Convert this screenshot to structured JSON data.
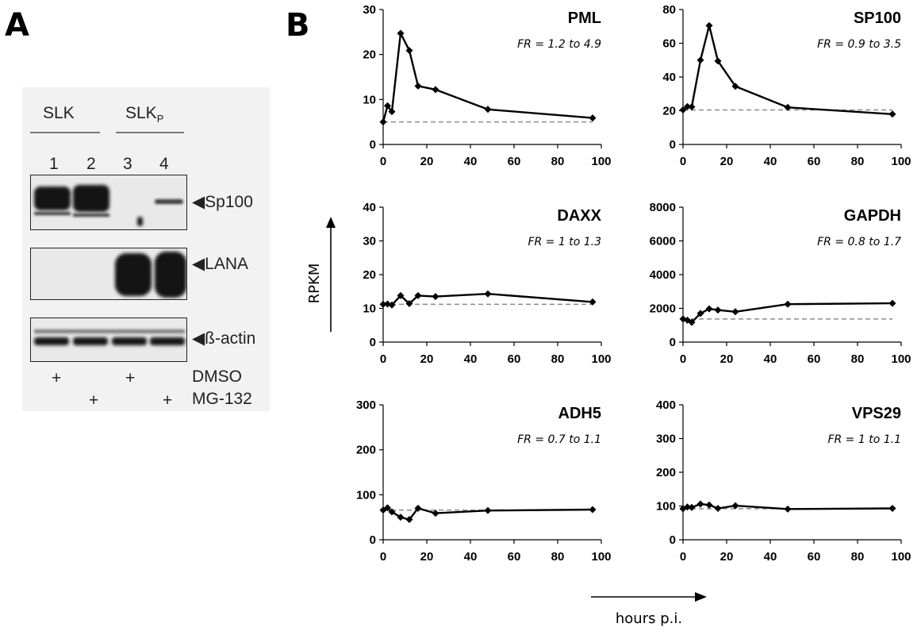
{
  "panel_a": {
    "letter": "A",
    "group_labels": [
      "SLK",
      "SLK",
      "P"
    ],
    "lane_numbers": [
      "1",
      "2",
      "3",
      "4"
    ],
    "band_labels": [
      "◀Sp100",
      "◀LANA",
      "◀ß-actin"
    ],
    "treatments": [
      {
        "label": "DMSO",
        "marks": [
          "+",
          "",
          "+",
          ""
        ]
      },
      {
        "label": "MG-132",
        "marks": [
          "",
          "+",
          "",
          "+"
        ]
      }
    ]
  },
  "panel_b": {
    "letter": "B",
    "ylabel": "RPKM",
    "xlabel": "hours p.i.",
    "line_color": "#000000",
    "baseline_color": "#8a8a8a"
  },
  "chart_data": [
    {
      "type": "line",
      "title": "PML",
      "annotation": "FR = 1.2 to 4.9",
      "x": [
        0,
        2,
        4,
        8,
        12,
        16,
        24,
        48,
        96
      ],
      "y": [
        5,
        8.6,
        7.3,
        24.7,
        20.9,
        13,
        12.2,
        7.8,
        5.9
      ],
      "baseline": 5,
      "ylim": [
        0,
        30
      ],
      "yticks": [
        0,
        10,
        20,
        30
      ],
      "xlim": [
        0,
        100
      ],
      "xticks": [
        0,
        20,
        40,
        60,
        80,
        100
      ]
    },
    {
      "type": "line",
      "title": "SP100",
      "annotation": "FR = 0.9 to 3.5",
      "x": [
        0,
        2,
        4,
        8,
        12,
        16,
        24,
        48,
        96
      ],
      "y": [
        20.5,
        22.5,
        22.3,
        50,
        70.5,
        49.5,
        34.5,
        22,
        18
      ],
      "baseline": 20.5,
      "ylim": [
        0,
        80
      ],
      "yticks": [
        0,
        20,
        40,
        60,
        80
      ],
      "xlim": [
        0,
        100
      ],
      "xticks": [
        0,
        20,
        40,
        60,
        80,
        100
      ]
    },
    {
      "type": "line",
      "title": "DAXX",
      "annotation": "FR = 1 to 1.3",
      "x": [
        0,
        2,
        4,
        8,
        12,
        16,
        24,
        48,
        96
      ],
      "y": [
        11.2,
        11.3,
        11,
        13.8,
        11.4,
        13.8,
        13.5,
        14.3,
        11.9
      ],
      "baseline": 11.2,
      "ylim": [
        0,
        40
      ],
      "yticks": [
        0,
        10,
        20,
        30,
        40
      ],
      "xlim": [
        0,
        100
      ],
      "xticks": [
        0,
        20,
        40,
        60,
        80,
        100
      ]
    },
    {
      "type": "line",
      "title": "GAPDH",
      "annotation": "FR = 0.8 to 1.7",
      "x": [
        0,
        2,
        4,
        8,
        12,
        16,
        24,
        48,
        96
      ],
      "y": [
        1370,
        1300,
        1170,
        1700,
        1970,
        1900,
        1800,
        2250,
        2300
      ],
      "baseline": 1370,
      "ylim": [
        0,
        8000
      ],
      "yticks": [
        0,
        2000,
        4000,
        6000,
        8000
      ],
      "xlim": [
        0,
        100
      ],
      "xticks": [
        0,
        20,
        40,
        60,
        80,
        100
      ]
    },
    {
      "type": "line",
      "title": "ADH5",
      "annotation": "FR = 0.7 to 1.1",
      "x": [
        0,
        2,
        4,
        8,
        12,
        16,
        24,
        48,
        96
      ],
      "y": [
        66,
        71,
        62,
        50,
        45,
        70,
        59,
        65,
        67
      ],
      "baseline": 66,
      "ylim": [
        0,
        300
      ],
      "yticks": [
        0,
        100,
        200,
        300
      ],
      "xlim": [
        0,
        100
      ],
      "xticks": [
        0,
        20,
        40,
        60,
        80,
        100
      ]
    },
    {
      "type": "line",
      "title": "VPS29",
      "annotation": "FR = 1 to 1.1",
      "x": [
        0,
        2,
        4,
        8,
        12,
        16,
        24,
        48,
        96
      ],
      "y": [
        92,
        97,
        96,
        106,
        103,
        93,
        101,
        91,
        93
      ],
      "baseline": 92,
      "ylim": [
        0,
        400
      ],
      "yticks": [
        0,
        100,
        200,
        300,
        400
      ],
      "xlim": [
        0,
        100
      ],
      "xticks": [
        0,
        20,
        40,
        60,
        80,
        100
      ]
    }
  ]
}
